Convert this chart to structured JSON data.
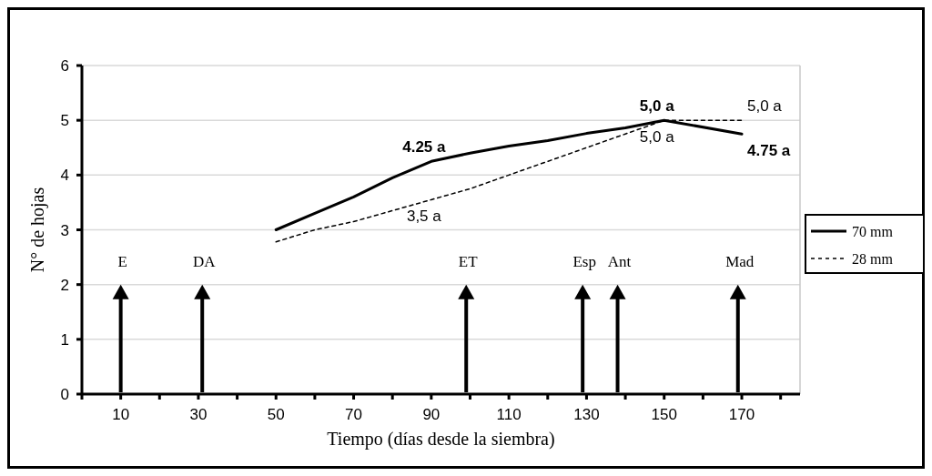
{
  "chart_data": {
    "type": "line",
    "xlabel": "Tiempo (días desde la siembra)",
    "ylabel": "N° de hojas",
    "xlim": [
      0,
      185
    ],
    "xticks": [
      {
        "value": 0,
        "label": null
      },
      10,
      {
        "value": 20,
        "label": null
      },
      30,
      {
        "value": 40,
        "label": null
      },
      50,
      {
        "value": 60,
        "label": null
      },
      70,
      {
        "value": 80,
        "label": null
      },
      90,
      {
        "value": 100,
        "label": null
      },
      110,
      {
        "value": 120,
        "label": null
      },
      130,
      {
        "value": 140,
        "label": null
      },
      150,
      {
        "value": 160,
        "label": null
      },
      170,
      {
        "value": 180,
        "label": null
      }
    ],
    "ylim": [
      0,
      6
    ],
    "yticks": [
      0,
      1,
      2,
      3,
      4,
      5,
      6
    ],
    "grid": "y",
    "legend": "right",
    "marker": "none",
    "series": [
      {
        "name": "70 mm",
        "color": "#000000",
        "line_style": "solid",
        "x": [
          50,
          60,
          70,
          80,
          90,
          100,
          110,
          120,
          130,
          140,
          150,
          170
        ],
        "values": [
          3.0,
          3.3,
          3.6,
          3.95,
          4.25,
          4.4,
          4.53,
          4.63,
          4.76,
          4.86,
          5.0,
          4.75
        ],
        "value_labels": [
          null,
          null,
          null,
          null,
          "4.25 a",
          null,
          null,
          null,
          null,
          null,
          "5,0 a",
          "4.75 a"
        ]
      },
      {
        "name": "28 mm",
        "color": "#000000",
        "line_style": "dashed",
        "x": [
          50,
          60,
          70,
          80,
          90,
          100,
          110,
          120,
          130,
          140,
          150,
          170
        ],
        "values": [
          2.78,
          3.0,
          3.15,
          3.35,
          3.55,
          3.75,
          4.0,
          4.25,
          4.5,
          4.75,
          5.0,
          5.0
        ],
        "value_labels": [
          null,
          null,
          null,
          null,
          "3,5 a",
          null,
          null,
          null,
          null,
          null,
          "5,0 a",
          "5,0 a"
        ]
      }
    ],
    "ref_lines": [
      {
        "axis": "x",
        "value": 10,
        "label": "E"
      },
      {
        "axis": "x",
        "value": 31,
        "label": "DA"
      },
      {
        "axis": "x",
        "value": 99,
        "label": "ET"
      },
      {
        "axis": "x",
        "value": 129,
        "label": "Esp"
      },
      {
        "axis": "x",
        "value": 138,
        "label": "Ant"
      },
      {
        "axis": "x",
        "value": 169,
        "label": "Mad"
      }
    ]
  }
}
